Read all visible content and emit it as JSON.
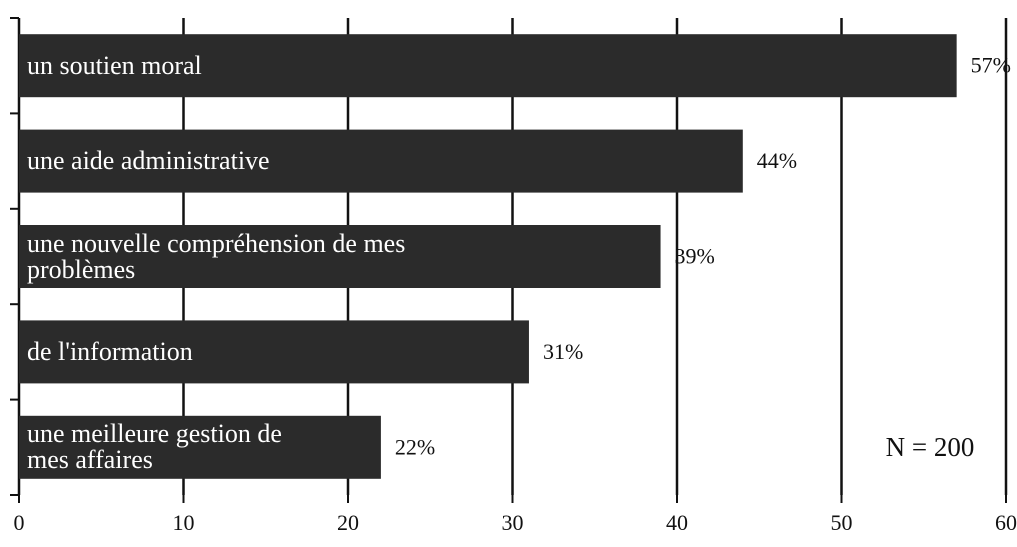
{
  "chart_data": {
    "type": "bar",
    "orientation": "horizontal",
    "categories": [
      "un soutien moral",
      "une aide administrative",
      "une nouvelle compréhension de mes\nproblèmes",
      "de l'information",
      "une meilleure gestion de\nmes affaires"
    ],
    "values": [
      57,
      44,
      39,
      31,
      22
    ],
    "value_labels": [
      "57%",
      "44%",
      "39%",
      "31%",
      "22%"
    ],
    "color": "#2b2b2b",
    "xlim": [
      0,
      60
    ],
    "xticks": [
      0,
      10,
      20,
      30,
      40,
      50,
      60
    ],
    "grid": true,
    "annotation": "N = 200"
  }
}
